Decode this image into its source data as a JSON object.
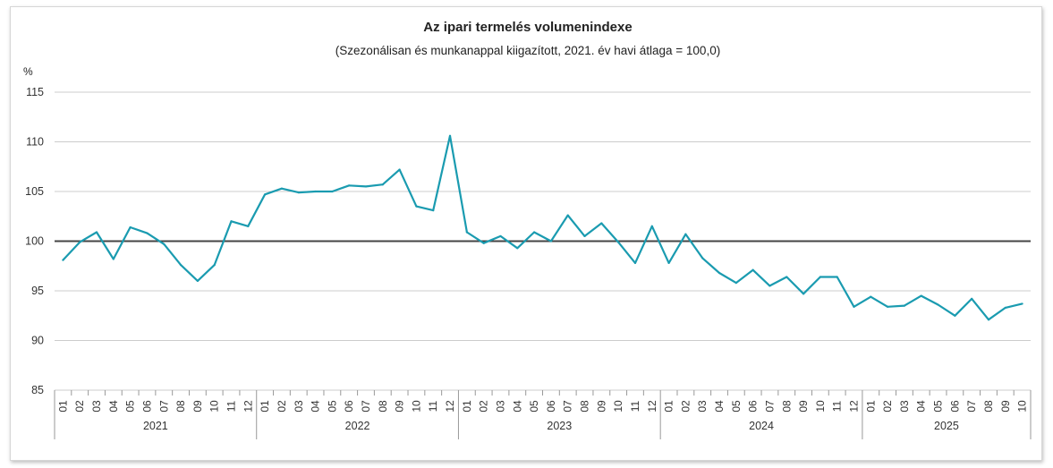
{
  "chart_data": {
    "type": "line",
    "title": "Az ipari termelés volumenindexe",
    "subtitle": "(Szezonálisan és munkanappal kiigazított, 2021. év havi átlaga = 100,0)",
    "unit_label": "%",
    "ylim": [
      85,
      115
    ],
    "y_ticks": [
      "85",
      "90",
      "95",
      "100",
      "105",
      "110",
      "115"
    ],
    "reference_line": 100,
    "grid": true,
    "colors": {
      "series": "#1a9bb0",
      "reference": "#444444",
      "grid": "#cccccc"
    },
    "years": [
      {
        "label": "2021",
        "months": [
          "01",
          "02",
          "03",
          "04",
          "05",
          "06",
          "07",
          "08",
          "09",
          "10",
          "11",
          "12"
        ]
      },
      {
        "label": "2022",
        "months": [
          "01",
          "02",
          "03",
          "04",
          "05",
          "06",
          "07",
          "08",
          "09",
          "10",
          "11",
          "12"
        ]
      },
      {
        "label": "2023",
        "months": [
          "01",
          "02",
          "03",
          "04",
          "05",
          "06",
          "07",
          "08",
          "09",
          "10",
          "11",
          "12"
        ]
      },
      {
        "label": "2024",
        "months": [
          "01",
          "02",
          "03",
          "04",
          "05",
          "06",
          "07",
          "08",
          "09",
          "10",
          "11",
          "12"
        ]
      },
      {
        "label": "2025",
        "months": [
          "01",
          "02",
          "03",
          "04",
          "05",
          "06",
          "07",
          "08",
          "09",
          "10"
        ]
      }
    ],
    "series": [
      {
        "values": [
          98.1,
          99.9,
          100.9,
          98.2,
          101.4,
          100.8,
          99.7,
          97.6,
          96.0,
          97.6,
          102.0,
          101.5,
          104.7,
          105.3,
          104.9,
          105.0,
          105.0,
          105.6,
          105.5,
          105.7,
          107.2,
          103.5,
          103.1,
          110.6,
          100.9,
          99.8,
          100.5,
          99.3,
          100.9,
          100.0,
          102.6,
          100.5,
          101.8,
          99.9,
          97.8,
          101.5,
          97.8,
          100.7,
          98.3,
          96.8,
          95.8,
          97.1,
          95.5,
          96.4,
          94.7,
          96.4,
          96.4,
          93.4,
          94.4,
          93.4,
          93.5,
          94.5,
          93.6,
          92.5,
          94.2,
          92.1,
          93.3,
          93.7
        ]
      }
    ]
  }
}
